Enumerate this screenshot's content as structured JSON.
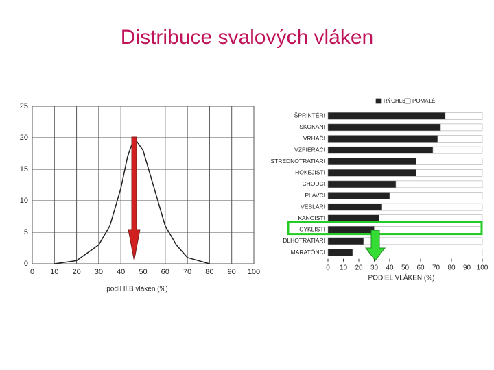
{
  "title": "Distribuce svalových vláken",
  "chart_data": [
    {
      "type": "line",
      "xlabel": "podíl II.B vláken (%)",
      "x": [
        10,
        20,
        30,
        35,
        40,
        43,
        46,
        50,
        55,
        60,
        65,
        70,
        80
      ],
      "values": [
        0,
        0.5,
        3,
        6,
        12,
        17,
        20,
        18,
        12,
        6,
        3,
        1,
        0
      ],
      "color": "#222222",
      "xlim": [
        0,
        100
      ],
      "ylim": [
        0,
        25
      ],
      "xticks": [
        0,
        10,
        20,
        30,
        40,
        50,
        60,
        70,
        80,
        90,
        100
      ],
      "yticks": [
        0,
        5,
        10,
        15,
        20,
        25
      ],
      "grid": true
    },
    {
      "type": "barh",
      "xlabel": "PODIEL VLÁKEN (%)",
      "categories": [
        "ŠPRINTÉRI",
        "SKOKANI",
        "VRHAČI",
        "VZPIERAČI",
        "STREDNOTRATIARI",
        "HOKEJISTI",
        "CHODCI",
        "PLAVCI",
        "VESLÁRI",
        "KANOISTI",
        "CYKLISTI",
        "DLHOTRATIARI",
        "MARATÓNCI"
      ],
      "series": [
        {
          "name": "RÝCHLE",
          "color": "#222222",
          "values": [
            76,
            73,
            71,
            68,
            57,
            57,
            44,
            40,
            35,
            33,
            30,
            23,
            16
          ]
        },
        {
          "name": "POMALÉ",
          "color": "#ffffff",
          "values": [
            24,
            27,
            29,
            32,
            43,
            43,
            56,
            60,
            65,
            67,
            70,
            77,
            84
          ]
        }
      ],
      "xlim": [
        0,
        100
      ],
      "xticks": [
        0,
        10,
        20,
        30,
        40,
        50,
        60,
        70,
        80,
        90,
        100
      ],
      "legend": "top"
    }
  ]
}
